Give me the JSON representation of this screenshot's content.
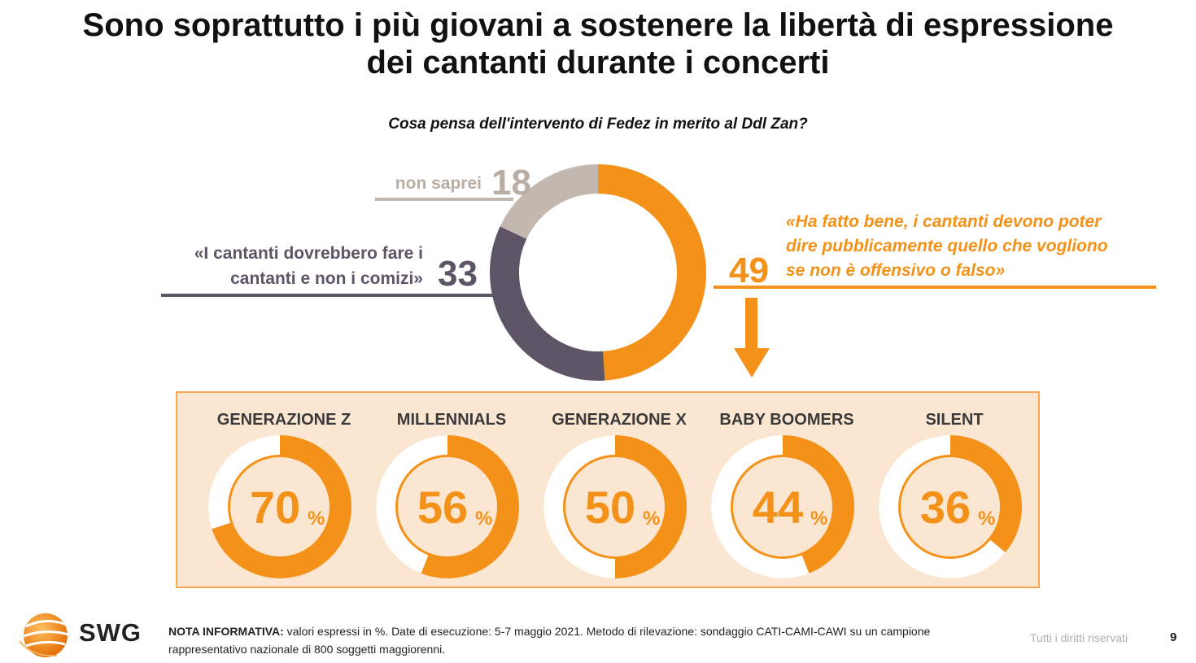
{
  "header": {
    "title_line1": "Sono soprattutto i più giovani a sostenere la libertà di espressione",
    "title_line2": "dei cantanti durante i concerti",
    "question": "Cosa pensa dell'intervento di Fedez in merito al Ddl Zan?"
  },
  "labels": {
    "non_saprei": "non saprei",
    "opposed_line1": "«I cantanti dovrebbero fare i",
    "opposed_line2": "cantanti e non i comizi»",
    "favor_line1": "«Ha fatto bene, i cantanti devono poter",
    "favor_line2": "dire pubblicamente quello che vogliono",
    "favor_line3": "se non è offensivo o falso»",
    "percent_sign": "%"
  },
  "colors": {
    "favor": "#f39119",
    "opposed": "#5d5566",
    "unsure": "#c3b8af",
    "panel_bg": "#fbe7d1",
    "ring_inner": "#ffffff"
  },
  "chart_data": [
    {
      "type": "pie",
      "title": "Cosa pensa dell'intervento di Fedez in merito al Ddl Zan?",
      "categories": [
        "«Ha fatto bene, i cantanti devono poter dire pubblicamente quello che vogliono se non è offensivo o falso»",
        "«I cantanti dovrebbero fare i cantanti e non i comizi»",
        "non saprei"
      ],
      "values": [
        49,
        33,
        18
      ]
    },
    {
      "type": "bar",
      "categories": [
        "GENERAZIONE Z",
        "MILLENNIALS",
        "GENERAZIONE X",
        "BABY BOOMERS",
        "SILENT"
      ],
      "values": [
        70,
        56,
        50,
        44,
        36
      ],
      "display": [
        "70",
        "56",
        "50",
        "44",
        "36"
      ]
    }
  ],
  "footer": {
    "logo_text": "SWG",
    "note_bold": "NOTA INFORMATIVA:",
    "note_text": " valori espressi in %. Date di esecuzione: 5-7 maggio 2021. Metodo di rilevazione: sondaggio CATI-CAMI-CAWI su un campione rappresentativo nazionale di 800 soggetti maggiorenni.",
    "rights": "Tutti i diritti riservati",
    "page_number": "9"
  }
}
